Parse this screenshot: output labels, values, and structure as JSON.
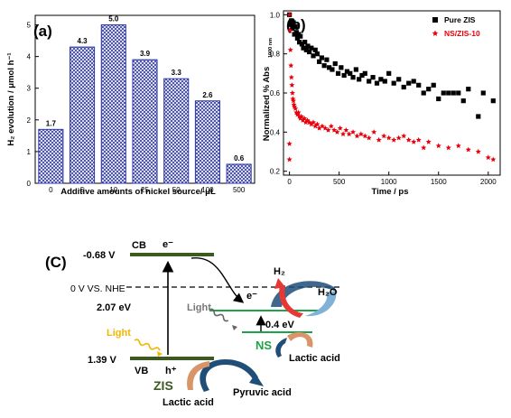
{
  "chart_data": [
    {
      "panel": "(a)",
      "type": "bar",
      "categories": [
        "0",
        "5",
        "10",
        "25",
        "50",
        "100",
        "500"
      ],
      "values": [
        1.7,
        4.3,
        5.0,
        3.9,
        3.3,
        2.6,
        0.6
      ],
      "value_labels": [
        "1.7",
        "4.3",
        "5.0",
        "3.9",
        "3.3",
        "2.6",
        "0.6"
      ],
      "xlabel": "Additive amounts of nickel source/ μL",
      "ylabel": "H₂ evolution / μmol h⁻¹",
      "ylim": [
        0,
        5.3
      ],
      "yticks": [
        "0",
        "1",
        "2",
        "3",
        "4",
        "5"
      ],
      "bar_fill": "crosshatch",
      "bar_color": "#2b36a8"
    },
    {
      "panel": "(b)",
      "type": "scatter",
      "xlabel": "Time / ps",
      "ylabel": "Normalized % Abs",
      "ylabel_sub": "1000 nm",
      "xlim": [
        -60,
        2120
      ],
      "ylim": [
        0.18,
        1.02
      ],
      "xticks": [
        "0",
        "500",
        "1000",
        "1500",
        "2000"
      ],
      "yticks": [
        "0.2",
        "0.4",
        "0.6",
        "0.8",
        "1.0"
      ],
      "legend_position": "top-right",
      "series": [
        {
          "name": "Pure ZIS",
          "color": "#000000",
          "marker": "square",
          "x": [
            0,
            10,
            20,
            30,
            40,
            50,
            60,
            70,
            80,
            90,
            100,
            110,
            125,
            140,
            155,
            170,
            185,
            200,
            220,
            240,
            260,
            280,
            300,
            325,
            350,
            375,
            400,
            430,
            460,
            490,
            520,
            550,
            580,
            610,
            640,
            670,
            700,
            730,
            760,
            800,
            840,
            880,
            920,
            960,
            1000,
            1050,
            1100,
            1150,
            1200,
            1250,
            1300,
            1350,
            1400,
            1450,
            1500,
            1550,
            1600,
            1650,
            1700,
            1750,
            1800,
            1900,
            1950,
            2050
          ],
          "y": [
            1.0,
            0.95,
            0.97,
            0.93,
            0.96,
            0.9,
            0.94,
            0.91,
            0.88,
            0.9,
            0.86,
            0.89,
            0.85,
            0.83,
            0.86,
            0.82,
            0.84,
            0.81,
            0.83,
            0.79,
            0.82,
            0.8,
            0.76,
            0.78,
            0.74,
            0.77,
            0.73,
            0.72,
            0.75,
            0.7,
            0.73,
            0.69,
            0.71,
            0.7,
            0.68,
            0.72,
            0.67,
            0.69,
            0.7,
            0.66,
            0.68,
            0.65,
            0.67,
            0.66,
            0.7,
            0.65,
            0.67,
            0.63,
            0.65,
            0.66,
            0.64,
            0.6,
            0.62,
            0.64,
            0.57,
            0.6,
            0.6,
            0.6,
            0.6,
            0.56,
            0.62,
            0.48,
            0.6,
            0.56
          ]
        },
        {
          "name": "NS/ZIS-10",
          "color": "#e8000b",
          "marker": "star",
          "x": [
            0,
            5,
            10,
            15,
            20,
            25,
            30,
            35,
            40,
            45,
            50,
            60,
            70,
            80,
            90,
            100,
            110,
            120,
            135,
            150,
            165,
            180,
            200,
            220,
            240,
            260,
            280,
            300,
            330,
            360,
            390,
            420,
            450,
            480,
            510,
            540,
            570,
            600,
            640,
            680,
            720,
            760,
            800,
            850,
            900,
            950,
            1000,
            1050,
            1100,
            1150,
            1200,
            1250,
            1300,
            1350,
            1400,
            1500,
            1600,
            1700,
            1800,
            1900,
            2000,
            2050,
            0,
            0
          ],
          "y": [
            1.0,
            0.92,
            0.82,
            0.74,
            0.68,
            0.64,
            0.6,
            0.57,
            0.56,
            0.54,
            0.53,
            0.52,
            0.5,
            0.49,
            0.5,
            0.48,
            0.47,
            0.48,
            0.46,
            0.47,
            0.45,
            0.46,
            0.45,
            0.44,
            0.45,
            0.43,
            0.44,
            0.42,
            0.43,
            0.42,
            0.41,
            0.43,
            0.41,
            0.4,
            0.42,
            0.39,
            0.41,
            0.39,
            0.4,
            0.38,
            0.39,
            0.38,
            0.37,
            0.4,
            0.36,
            0.38,
            0.37,
            0.36,
            0.37,
            0.38,
            0.36,
            0.35,
            0.36,
            0.32,
            0.35,
            0.33,
            0.32,
            0.33,
            0.31,
            0.3,
            0.27,
            0.26,
            0.34,
            0.26
          ]
        }
      ]
    }
  ],
  "diagram": {
    "panel_label": "(C)",
    "cb_potential": "-0.68 V",
    "cb_label": "CB",
    "electron_top": "e⁻",
    "nhe_label": "0 V VS. NHE",
    "bandgap": "2.07 eV",
    "light_left": "Light",
    "vb_potential": "1.39 V",
    "vb_label": "VB",
    "hole": "h⁺",
    "zis_label": "ZIS",
    "lactic_left": "Lactic acid",
    "pyruvic": "Pyruvic acid",
    "h2": "H₂",
    "h2o": "H₂O",
    "electron_mid": "e⁻",
    "light_mid": "Light",
    "ns_gap": "0.4 eV",
    "ns_label": "NS",
    "lactic_right": "Lactic acid",
    "colors": {
      "band_green": "#3a5a1e",
      "ns_green": "#1fa04a",
      "light_yellow": "#f2b600",
      "arrow_red": "#e53935",
      "arrow_blue": "#1f4e79",
      "arrow_tan": "#d9956a"
    }
  }
}
